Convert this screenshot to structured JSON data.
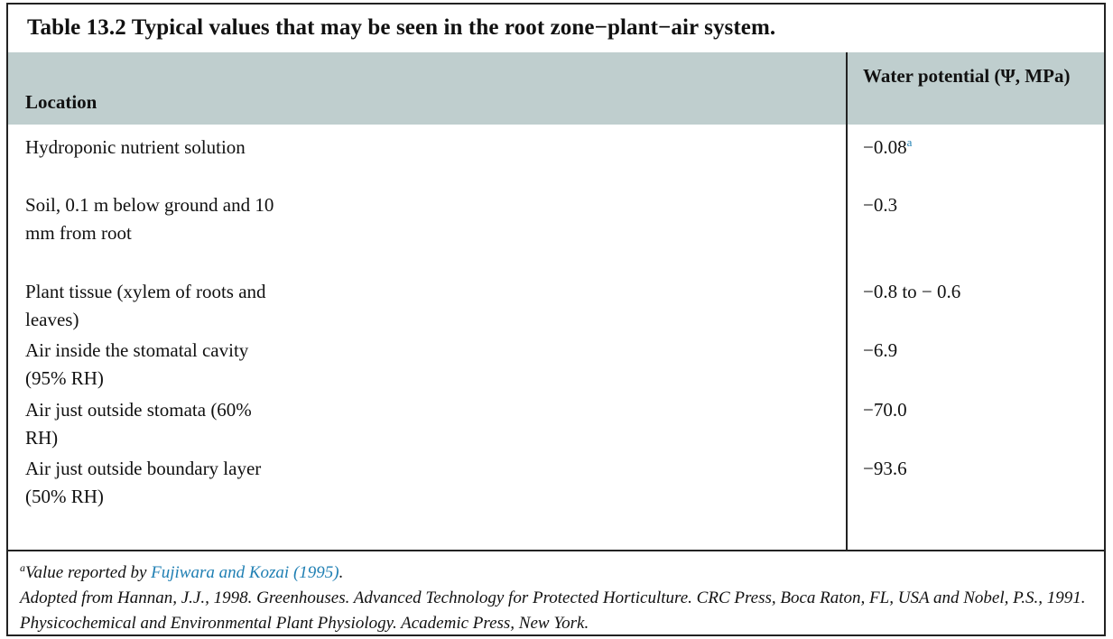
{
  "table": {
    "title": "Table 13.2  Typical values that may be seen in the root zone−plant−air system.",
    "headers": {
      "location": "Location",
      "water_potential": "Water potential (Ψ, MPa)"
    },
    "rows": [
      {
        "location": "Hydroponic nutrient solution",
        "value": "−0.08",
        "footnote": "a"
      },
      {
        "location": "Soil, 0.1 m below ground and 10 mm from root",
        "value": "−0.3",
        "footnote": ""
      },
      {
        "location": "Plant tissue (xylem of roots and leaves)",
        "value": "−0.8 to − 0.6",
        "footnote": ""
      },
      {
        "location": "Air inside the stomatal cavity (95% RH)",
        "value": "−6.9",
        "footnote": ""
      },
      {
        "location": "Air just outside stomata (60% RH)",
        "value": "−70.0",
        "footnote": ""
      },
      {
        "location": "Air just outside boundary layer (50% RH)",
        "value": "−93.6",
        "footnote": ""
      }
    ],
    "footnote": {
      "marker": "a",
      "text_before": "Value reported by ",
      "link": "Fujiwara and Kozai (1995)",
      "text_after": "."
    },
    "source": "Adopted from Hannan, J.J., 1998. Greenhouses. Advanced Technology for Protected Horticulture. CRC Press, Boca Raton, FL, USA and Nobel, P.S., 1991. Physicochemical and Environmental Plant Physiology. Academic Press, New York."
  }
}
